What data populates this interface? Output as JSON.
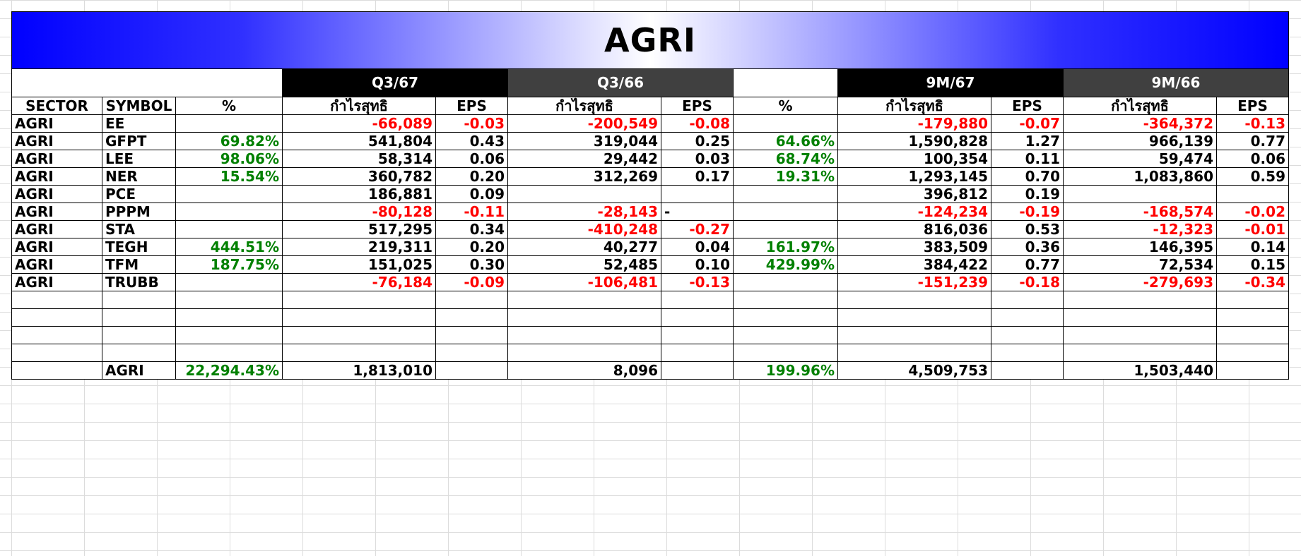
{
  "title": "AGRI",
  "groups": {
    "q3_67": "Q3/67",
    "q3_66": "Q3/66",
    "m9_67": "9M/67",
    "m9_66": "9M/66"
  },
  "headers": [
    "SECTOR",
    "SYMBOL",
    "%",
    "กำไรสุทธิ",
    "EPS",
    "กำไรสุทธิ",
    "EPS",
    "%",
    "กำไรสุทธิ",
    "EPS",
    "กำไรสุทธิ",
    "EPS"
  ],
  "rows": [
    {
      "sector": "AGRI",
      "symbol": "EE",
      "pct_q": "",
      "np_q3_67": "-66,089",
      "eps_q3_67": "-0.03",
      "np_q3_66": "-200,549",
      "eps_q3_66": "-0.08",
      "pct_9m": "",
      "np_9m_67": "-179,880",
      "eps_9m_67": "-0.07",
      "np_9m_66": "-364,372",
      "eps_9m_66": "-0.13"
    },
    {
      "sector": "AGRI",
      "symbol": "GFPT",
      "pct_q": "69.82%",
      "np_q3_67": "541,804",
      "eps_q3_67": "0.43",
      "np_q3_66": "319,044",
      "eps_q3_66": "0.25",
      "pct_9m": "64.66%",
      "np_9m_67": "1,590,828",
      "eps_9m_67": "1.27",
      "np_9m_66": "966,139",
      "eps_9m_66": "0.77"
    },
    {
      "sector": "AGRI",
      "symbol": "LEE",
      "pct_q": "98.06%",
      "np_q3_67": "58,314",
      "eps_q3_67": "0.06",
      "np_q3_66": "29,442",
      "eps_q3_66": "0.03",
      "pct_9m": "68.74%",
      "np_9m_67": "100,354",
      "eps_9m_67": "0.11",
      "np_9m_66": "59,474",
      "eps_9m_66": "0.06"
    },
    {
      "sector": "AGRI",
      "symbol": "NER",
      "pct_q": "15.54%",
      "np_q3_67": "360,782",
      "eps_q3_67": "0.20",
      "np_q3_66": "312,269",
      "eps_q3_66": "0.17",
      "pct_9m": "19.31%",
      "np_9m_67": "1,293,145",
      "eps_9m_67": "0.70",
      "np_9m_66": "1,083,860",
      "eps_9m_66": "0.59"
    },
    {
      "sector": "AGRI",
      "symbol": "PCE",
      "pct_q": "",
      "np_q3_67": "186,881",
      "eps_q3_67": "0.09",
      "np_q3_66": "",
      "eps_q3_66": "",
      "pct_9m": "",
      "np_9m_67": "396,812",
      "eps_9m_67": "0.19",
      "np_9m_66": "",
      "eps_9m_66": ""
    },
    {
      "sector": "AGRI",
      "symbol": "PPPM",
      "pct_q": "",
      "np_q3_67": "-80,128",
      "eps_q3_67": "-0.11",
      "np_q3_66": "-28,143",
      "eps_q3_66": "-",
      "pct_9m": "",
      "np_9m_67": "-124,234",
      "eps_9m_67": "-0.19",
      "np_9m_66": "-168,574",
      "eps_9m_66": "-0.02"
    },
    {
      "sector": "AGRI",
      "symbol": "STA",
      "pct_q": "",
      "np_q3_67": "517,295",
      "eps_q3_67": "0.34",
      "np_q3_66": "-410,248",
      "eps_q3_66": "-0.27",
      "pct_9m": "",
      "np_9m_67": "816,036",
      "eps_9m_67": "0.53",
      "np_9m_66": "-12,323",
      "eps_9m_66": "-0.01"
    },
    {
      "sector": "AGRI",
      "symbol": "TEGH",
      "pct_q": "444.51%",
      "np_q3_67": "219,311",
      "eps_q3_67": "0.20",
      "np_q3_66": "40,277",
      "eps_q3_66": "0.04",
      "pct_9m": "161.97%",
      "np_9m_67": "383,509",
      "eps_9m_67": "0.36",
      "np_9m_66": "146,395",
      "eps_9m_66": "0.14"
    },
    {
      "sector": "AGRI",
      "symbol": "TFM",
      "pct_q": "187.75%",
      "np_q3_67": "151,025",
      "eps_q3_67": "0.30",
      "np_q3_66": "52,485",
      "eps_q3_66": "0.10",
      "pct_9m": "429.99%",
      "np_9m_67": "384,422",
      "eps_9m_67": "0.77",
      "np_9m_66": "72,534",
      "eps_9m_66": "0.15"
    },
    {
      "sector": "AGRI",
      "symbol": "TRUBB",
      "pct_q": "",
      "np_q3_67": "-76,184",
      "eps_q3_67": "-0.09",
      "np_q3_66": "-106,481",
      "eps_q3_66": "-0.13",
      "pct_9m": "",
      "np_9m_67": "-151,239",
      "eps_9m_67": "-0.18",
      "np_9m_66": "-279,693",
      "eps_9m_66": "-0.34"
    }
  ],
  "empty_rows": 4,
  "total": {
    "symbol": "AGRI",
    "pct_q": "22,294.43%",
    "np_q3_67": "1,813,010",
    "np_q3_66": "8,096",
    "pct_9m": "199.96%",
    "np_9m_67": "4,509,753",
    "np_9m_66": "1,503,440"
  },
  "colors": {
    "negative": "#ff0000",
    "positive_pct": "#008000",
    "banner_blue": "#0000ff",
    "header_black": "#000000",
    "header_gray": "#404040"
  }
}
